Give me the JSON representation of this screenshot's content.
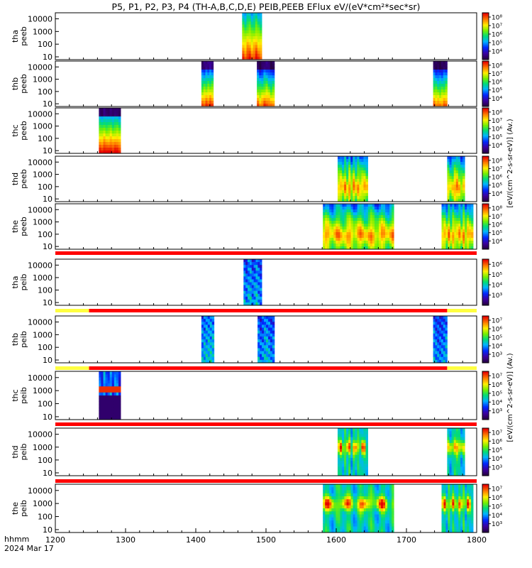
{
  "title": "P5, P1, P2, P3, P4 (TH-A,B,C,D,E) PEIB,PEEB EFlux eV/(eV*cm²*sec*sr)",
  "colorbar_label_electron": "[eV/(cm^2-s-sr-eV)] (Av.)",
  "colorbar_label_ion": "[eV/(cm^2-s-sr-eV)] (Av.)",
  "footer": {
    "time_label": "hhmm",
    "date_label": "2024 Mar 17",
    "x_ticks": [
      "1200",
      "1300",
      "1400",
      "1500",
      "1600",
      "1700",
      "1800"
    ]
  },
  "chart_data": {
    "type": "heatmap",
    "x_unit": "hhmm",
    "x_range": [
      1200,
      1800
    ],
    "y_scale": "log",
    "colormap": "rainbow",
    "panels": [
      {
        "id": "tha-peeb",
        "label1": "tha",
        "label2": "peeb",
        "y_ticks": [
          "10",
          "100",
          "1000",
          "10000"
        ],
        "cb_ticks": [
          "10⁴",
          "10⁵",
          "10⁶",
          "10⁷",
          "10⁸"
        ],
        "cb_range_exp": [
          3,
          8
        ],
        "blocks": [
          {
            "start": 1466,
            "end": 1494,
            "style": "e_hot"
          }
        ]
      },
      {
        "id": "thb-peeb",
        "label1": "thb",
        "label2": "peeb",
        "y_ticks": [
          "10",
          "100",
          "1000",
          "10000"
        ],
        "cb_ticks": [
          "10⁴",
          "10⁵",
          "10⁶",
          "10⁷",
          "10⁸"
        ],
        "cb_range_exp": [
          3,
          8
        ],
        "blocks": [
          {
            "start": 1408,
            "end": 1425,
            "style": "e_cool"
          },
          {
            "start": 1487,
            "end": 1512,
            "style": "e_cool"
          },
          {
            "start": 1738,
            "end": 1758,
            "style": "e_cool"
          }
        ]
      },
      {
        "id": "thc-peeb",
        "label1": "thc",
        "label2": "peeb",
        "y_ticks": [
          "10",
          "100",
          "1000",
          "10000"
        ],
        "cb_ticks": [
          "10⁴",
          "10⁵",
          "10⁶",
          "10⁷",
          "10⁸"
        ],
        "cb_range_exp": [
          3,
          8
        ],
        "blocks": [
          {
            "start": 1262,
            "end": 1293,
            "style": "e_warm"
          }
        ]
      },
      {
        "id": "thd-peeb",
        "label1": "thd",
        "label2": "peeb",
        "y_ticks": [
          "10",
          "100",
          "1000",
          "10000"
        ],
        "cb_ticks": [
          "10⁴",
          "10⁵",
          "10⁶",
          "10⁷",
          "10⁸"
        ],
        "cb_range_exp": [
          3,
          8
        ],
        "blocks": [
          {
            "start": 1602,
            "end": 1645,
            "style": "e_sheet"
          },
          {
            "start": 1758,
            "end": 1783,
            "style": "e_sheet"
          }
        ]
      },
      {
        "id": "the-peeb",
        "label1": "the",
        "label2": "peeb",
        "y_ticks": [
          "10",
          "100",
          "1000",
          "10000"
        ],
        "cb_ticks": [
          "10⁴",
          "10⁵",
          "10⁶",
          "10⁷",
          "10⁸"
        ],
        "cb_range_exp": [
          3,
          8
        ],
        "blocks": [
          {
            "start": 1581,
            "end": 1682,
            "style": "e_sheet"
          },
          {
            "start": 1750,
            "end": 1795,
            "style": "e_sheet"
          }
        ]
      },
      {
        "id": "tha-peib",
        "label1": "tha",
        "label2": "peib",
        "y_ticks": [
          "10",
          "100",
          "1000",
          "10000"
        ],
        "cb_ticks": [
          "10³",
          "10⁴",
          "10⁵",
          "10⁶"
        ],
        "cb_range_exp": [
          3,
          7
        ],
        "blocks": [
          {
            "start": 1468,
            "end": 1494,
            "style": "i_cool"
          }
        ]
      },
      {
        "id": "thb-peib",
        "label1": "thb",
        "label2": "peib",
        "y_ticks": [
          "10",
          "100",
          "1000",
          "10000"
        ],
        "cb_ticks": [
          "10³",
          "10⁴",
          "10⁵",
          "10⁶",
          "10⁷"
        ],
        "cb_range_exp": [
          3,
          7
        ],
        "blocks": [
          {
            "start": 1408,
            "end": 1426,
            "style": "i_cool"
          },
          {
            "start": 1488,
            "end": 1512,
            "style": "i_cool"
          },
          {
            "start": 1738,
            "end": 1758,
            "style": "i_cool"
          }
        ]
      },
      {
        "id": "thc-peib",
        "label1": "thc",
        "label2": "peib",
        "y_ticks": [
          "10",
          "100",
          "1000",
          "10000"
        ],
        "cb_ticks": [
          "10³",
          "10⁴",
          "10⁵",
          "10⁶",
          "10⁷"
        ],
        "cb_range_exp": [
          3,
          7
        ],
        "blocks": [
          {
            "start": 1262,
            "end": 1293,
            "style": "i_band"
          }
        ]
      },
      {
        "id": "thd-peib",
        "label1": "thd",
        "label2": "peib",
        "y_ticks": [
          "10",
          "100",
          "1000",
          "10000"
        ],
        "cb_ticks": [
          "10³",
          "10⁴",
          "10⁵",
          "10⁶",
          "10⁷"
        ],
        "cb_range_exp": [
          3,
          7
        ],
        "blocks": [
          {
            "start": 1602,
            "end": 1645,
            "style": "i_hot"
          },
          {
            "start": 1758,
            "end": 1783,
            "style": "i_hot"
          }
        ]
      },
      {
        "id": "the-peib",
        "label1": "the",
        "label2": "peib",
        "y_ticks": [
          "10",
          "100",
          "1000",
          "10000"
        ],
        "cb_ticks": [
          "10³",
          "10⁴",
          "10⁵",
          "10⁶",
          "10⁷"
        ],
        "cb_range_exp": [
          3,
          7
        ],
        "blocks": [
          {
            "start": 1581,
            "end": 1682,
            "style": "i_hot"
          },
          {
            "start": 1750,
            "end": 1795,
            "style": "i_hot"
          }
        ]
      }
    ],
    "status_bars": [
      {
        "after_panel": 4,
        "segments": [
          {
            "start": 1200,
            "end": 1800,
            "color": "red"
          }
        ]
      },
      {
        "after_panel": 5,
        "segments": [
          {
            "start": 1200,
            "end": 1248,
            "color": "yellow"
          },
          {
            "start": 1248,
            "end": 1758,
            "color": "red"
          },
          {
            "start": 1758,
            "end": 1800,
            "color": "yellow"
          }
        ]
      },
      {
        "after_panel": 6,
        "segments": [
          {
            "start": 1200,
            "end": 1248,
            "color": "yellow"
          },
          {
            "start": 1248,
            "end": 1758,
            "color": "red"
          },
          {
            "start": 1758,
            "end": 1800,
            "color": "yellow"
          }
        ]
      },
      {
        "after_panel": 7,
        "segments": [
          {
            "start": 1200,
            "end": 1800,
            "color": "red"
          }
        ]
      },
      {
        "after_panel": 8,
        "segments": [
          {
            "start": 1200,
            "end": 1800,
            "color": "red"
          }
        ]
      }
    ]
  }
}
